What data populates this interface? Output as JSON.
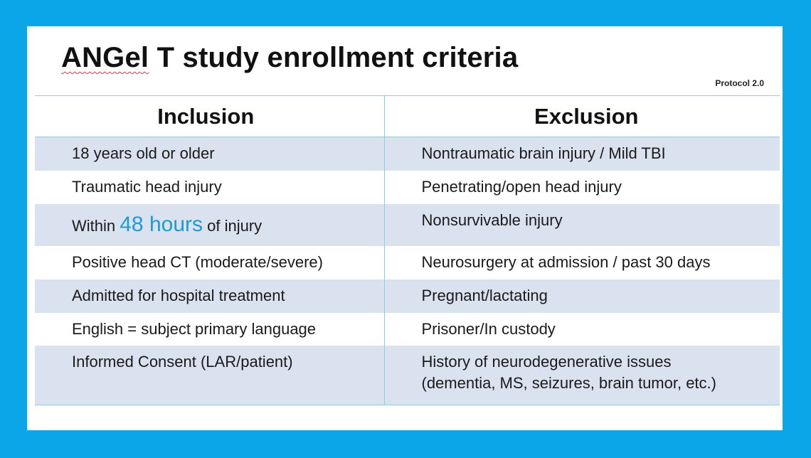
{
  "slide": {
    "title_word1": "ANGel",
    "title_rest": " T study enrollment criteria",
    "protocol": "Protocol 2.0"
  },
  "table": {
    "headers": {
      "inclusion": "Inclusion",
      "exclusion": "Exclusion"
    },
    "rows": [
      {
        "inclusion": "18 years old or older",
        "exclusion": "Nontraumatic brain injury / Mild TBI"
      },
      {
        "inclusion": "Traumatic head injury",
        "exclusion": "Penetrating/open head injury"
      },
      {
        "inclusion_pre": "Within ",
        "inclusion_highlight": "48 hours",
        "inclusion_post": " of injury",
        "exclusion": "Nonsurvivable injury"
      },
      {
        "inclusion": "Positive head CT (moderate/severe)",
        "exclusion": "Neurosurgery at admission / past 30 days"
      },
      {
        "inclusion": "Admitted for hospital treatment",
        "exclusion": "Pregnant/lactating"
      },
      {
        "inclusion": "English = subject primary language",
        "exclusion": "Prisoner/In custody"
      },
      {
        "inclusion": "Informed Consent (LAR/patient)",
        "exclusion_line1": "History of neurodegenerative issues",
        "exclusion_line2": "(dementia, MS, seizures, brain tumor, etc.)"
      }
    ]
  },
  "colors": {
    "frame": "#0aa6e8",
    "row_shade": "#dbe2ef",
    "divider": "#8fcbe8",
    "highlight": "#1d9ad8"
  }
}
